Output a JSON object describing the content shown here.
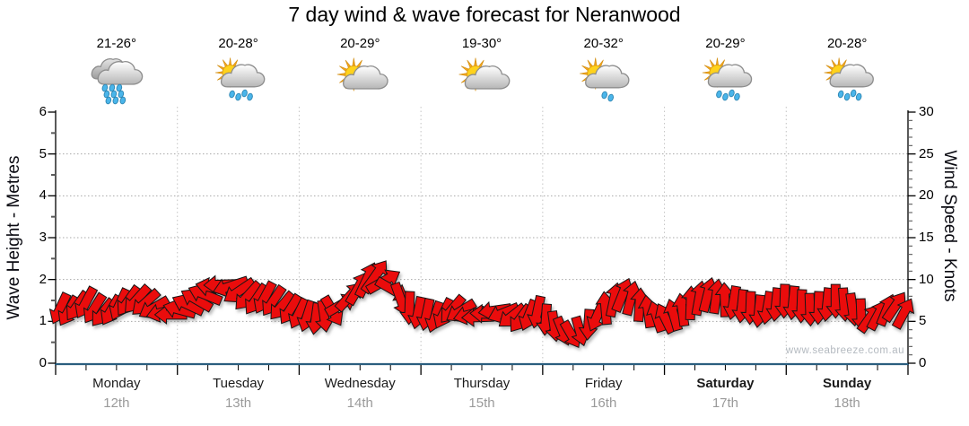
{
  "title": "7 day wind & wave forecast for Neranwood",
  "watermark": "www.seabreeze.com.au",
  "days": [
    {
      "name": "Monday",
      "date": "12th",
      "temp": "21-26°",
      "icon": "rain",
      "bold": false
    },
    {
      "name": "Tuesday",
      "date": "13th",
      "temp": "20-28°",
      "icon": "sun-cloud-rain",
      "bold": false
    },
    {
      "name": "Wednesday",
      "date": "14th",
      "temp": "20-29°",
      "icon": "sun-cloud",
      "bold": false
    },
    {
      "name": "Thursday",
      "date": "15th",
      "temp": "19-30°",
      "icon": "sun-cloud",
      "bold": false
    },
    {
      "name": "Friday",
      "date": "16th",
      "temp": "20-32°",
      "icon": "sun-cloud-light-rain",
      "bold": false
    },
    {
      "name": "Saturday",
      "date": "17th",
      "temp": "20-29°",
      "icon": "sun-cloud-rain",
      "bold": true
    },
    {
      "name": "Sunday",
      "date": "18th",
      "temp": "20-28°",
      "icon": "sun-cloud-rain",
      "bold": true
    }
  ],
  "chart_data": {
    "type": "wind-arrows",
    "title": "7 day wind & wave forecast for Neranwood",
    "left_axis": {
      "title": "Wave Height - Metres",
      "min": 0,
      "max": 6,
      "major_step": 1,
      "minor_step": 0.5,
      "ticks": [
        "0",
        "1",
        "2",
        "3",
        "4",
        "5",
        "6"
      ]
    },
    "right_axis": {
      "title": "Wind Speed - Knots",
      "min": 0,
      "max": 30,
      "major_step": 5,
      "minor_step": 1,
      "ticks": [
        "0",
        "5",
        "10",
        "15",
        "20",
        "25",
        "30"
      ]
    },
    "x_categories": [
      "Monday 12th",
      "Tuesday 13th",
      "Wednesday 14th",
      "Thursday 15th",
      "Friday 16th",
      "Saturday 17th",
      "Sunday 18th"
    ],
    "minor_x_ticks_per_day": 4,
    "grid": true,
    "legend": false,
    "wave_height_metres": [
      0,
      0,
      0,
      0,
      0,
      0,
      0
    ],
    "wind_speed_knots": [
      6.5,
      6.2,
      6.8,
      7.2,
      6.5,
      6.0,
      6.3,
      7.0,
      7.4,
      7.6,
      7.2,
      6.6,
      6.1,
      5.8,
      6.4,
      7.0,
      7.6,
      8.2,
      9.0,
      9.4,
      9.2,
      8.6,
      8.0,
      7.6,
      7.8,
      7.4,
      6.8,
      6.4,
      5.9,
      5.6,
      5.3,
      5.6,
      6.2,
      7.0,
      8.0,
      9.0,
      10.0,
      10.4,
      9.8,
      8.8,
      7.6,
      6.6,
      6.0,
      5.8,
      5.5,
      5.9,
      6.4,
      6.2,
      5.8,
      5.5,
      5.9,
      6.3,
      6.0,
      5.6,
      5.3,
      5.7,
      6.1,
      5.2,
      4.4,
      3.8,
      3.4,
      3.8,
      4.6,
      5.6,
      6.6,
      7.6,
      8.2,
      7.8,
      7.0,
      6.2,
      5.6,
      5.4,
      5.8,
      6.4,
      7.2,
      7.8,
      8.2,
      8.0,
      7.6,
      7.2,
      6.8,
      6.6,
      6.2,
      6.6,
      7.0,
      7.4,
      7.2,
      6.8,
      6.4,
      6.6,
      7.0,
      7.4,
      7.0,
      6.4,
      5.8,
      5.4,
      5.8,
      6.4,
      6.8,
      6.0
    ],
    "wind_direction_deg": [
      205,
      210,
      215,
      208,
      212,
      218,
      210,
      205,
      215,
      222,
      228,
      240,
      255,
      270,
      285,
      295,
      300,
      292,
      282,
      268,
      252,
      236,
      222,
      214,
      208,
      214,
      220,
      212,
      206,
      198,
      188,
      172,
      150,
      60,
      42,
      30,
      25,
      35,
      60,
      120,
      160,
      182,
      192,
      192,
      198,
      206,
      220,
      238,
      255,
      268,
      272,
      262,
      248,
      232,
      216,
      202,
      192,
      184,
      172,
      158,
      150,
      164,
      184,
      204,
      355,
      12,
      22,
      14,
      4,
      352,
      342,
      334,
      344,
      352,
      2,
      10,
      14,
      8,
      358,
      190,
      186,
      182,
      186,
      190,
      186,
      182,
      186,
      182,
      178,
      182,
      186,
      180,
      176,
      172,
      178,
      35,
      28,
      22,
      34,
      28
    ]
  },
  "colors": {
    "arrow_fill": "#ea0c0c",
    "arrow_stroke": "#161616",
    "baseline": "#2a5e7e",
    "axis": "#000000",
    "grid_dots": "#a8a8a8",
    "day_grid": "#c4c4c4",
    "tick_minor": "#5a5a5a",
    "day_text": "#1b1b1b",
    "date_text": "#9a9a9a",
    "watermark_text": "#b4bac0",
    "sun": "#ffd21c",
    "sun_ray": "#f2a51c",
    "cloud_light_top": "#ffffff",
    "cloud_light_bottom": "#b6b6b6",
    "cloud_dark_top": "#e4e4e4",
    "cloud_dark_bottom": "#9c9c9c",
    "drop": "#4ab5ea"
  }
}
